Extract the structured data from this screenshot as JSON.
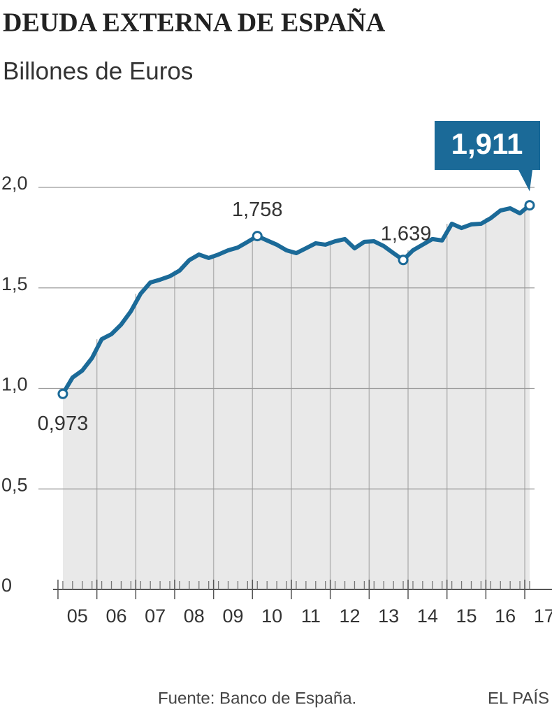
{
  "chart_data": {
    "type": "area-line",
    "title": "DEUDA EXTERNA DE ESPAÑA",
    "subtitle": "Billones de Euros",
    "source": "Fuente: Banco de España.",
    "brand": "EL PAÍS",
    "color": "#1b6a98",
    "fill": "#e9e9e9",
    "grid": true,
    "x": [
      2005.125,
      2005.375,
      2005.625,
      2005.875,
      2006.125,
      2006.375,
      2006.625,
      2006.875,
      2007.125,
      2007.375,
      2007.625,
      2007.875,
      2008.125,
      2008.375,
      2008.625,
      2008.875,
      2009.125,
      2009.375,
      2009.625,
      2009.875,
      2010.125,
      2010.375,
      2010.625,
      2010.875,
      2011.125,
      2011.375,
      2011.625,
      2011.875,
      2012.125,
      2012.375,
      2012.625,
      2012.875,
      2013.125,
      2013.375,
      2013.625,
      2013.875,
      2014.125,
      2014.375,
      2014.625,
      2014.875,
      2015.125,
      2015.375,
      2015.625,
      2015.875,
      2016.125,
      2016.375,
      2016.625,
      2016.875,
      2017.125
    ],
    "values": [
      0.973,
      1.054,
      1.089,
      1.151,
      1.245,
      1.27,
      1.318,
      1.384,
      1.471,
      1.527,
      1.541,
      1.558,
      1.586,
      1.638,
      1.666,
      1.649,
      1.666,
      1.687,
      1.701,
      1.729,
      1.758,
      1.736,
      1.715,
      1.687,
      1.673,
      1.697,
      1.722,
      1.715,
      1.732,
      1.743,
      1.697,
      1.729,
      1.732,
      1.708,
      1.673,
      1.639,
      1.687,
      1.715,
      1.743,
      1.736,
      1.819,
      1.798,
      1.816,
      1.819,
      1.847,
      1.885,
      1.896,
      1.871,
      1.911
    ],
    "value_labels": [
      "0,973",
      null,
      null,
      null,
      null,
      null,
      null,
      null,
      null,
      null,
      null,
      null,
      null,
      null,
      null,
      null,
      null,
      null,
      null,
      null,
      "1,758",
      null,
      null,
      null,
      null,
      null,
      null,
      null,
      null,
      null,
      null,
      null,
      null,
      null,
      null,
      "1,639",
      null,
      null,
      null,
      null,
      null,
      null,
      null,
      null,
      null,
      null,
      null,
      null,
      "1,911"
    ],
    "xlim": [
      2004.875,
      2017.7
    ],
    "xticks": [
      {
        "value": 2005.5,
        "label": "05"
      },
      {
        "value": 2006.5,
        "label": "06"
      },
      {
        "value": 2007.5,
        "label": "07"
      },
      {
        "value": 2008.5,
        "label": "08"
      },
      {
        "value": 2009.5,
        "label": "09"
      },
      {
        "value": 2010.5,
        "label": "10"
      },
      {
        "value": 2011.5,
        "label": "11"
      },
      {
        "value": 2012.5,
        "label": "12"
      },
      {
        "value": 2013.5,
        "label": "13"
      },
      {
        "value": 2014.5,
        "label": "14"
      },
      {
        "value": 2015.5,
        "label": "15"
      },
      {
        "value": 2016.5,
        "label": "16"
      },
      {
        "value": 2017.5,
        "label": "17"
      }
    ],
    "ylim": [
      0,
      2.0
    ],
    "yticks": [
      0,
      {
        "value": 0.5,
        "label": "0,5"
      },
      {
        "value": 1,
        "label": "1,0"
      },
      {
        "value": 1.5,
        "label": "1,5"
      },
      {
        "value": 2,
        "label": "2,0"
      }
    ]
  }
}
